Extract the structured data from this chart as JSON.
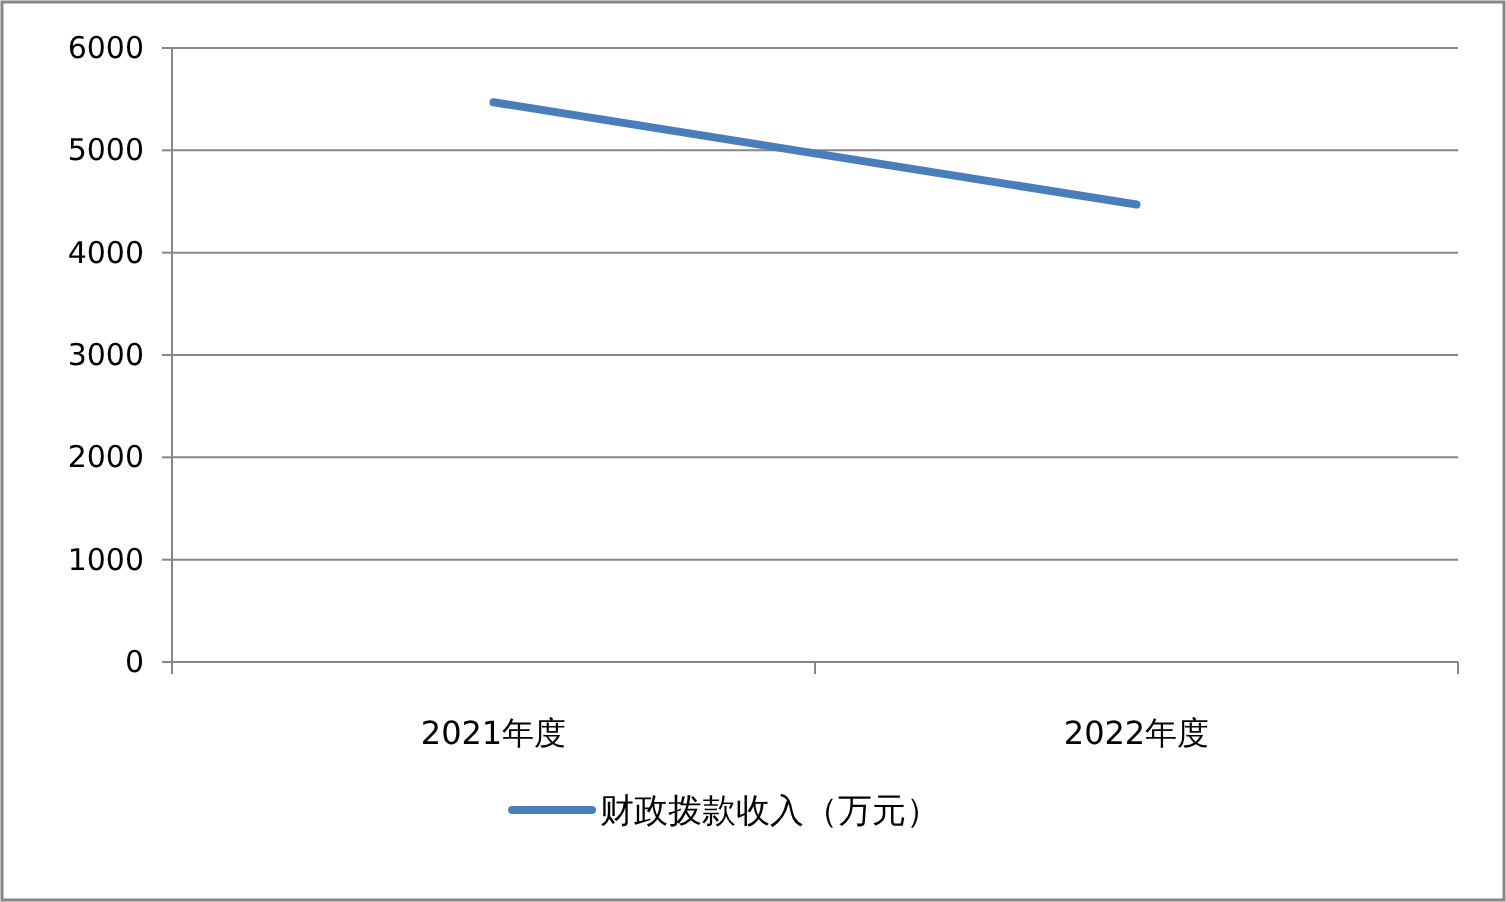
{
  "chart_data": {
    "type": "line",
    "categories": [
      "2021年度",
      "2022年度"
    ],
    "series": [
      {
        "name": "财政拨款收入（万元）",
        "color": "#4a7ebb",
        "values": [
          5470,
          4470
        ]
      }
    ],
    "ylim": [
      0,
      6000
    ],
    "yticks": [
      0,
      1000,
      2000,
      3000,
      4000,
      5000,
      6000
    ],
    "grid": "y",
    "legend": "bottom",
    "marker": "none",
    "line_style": "solid"
  }
}
